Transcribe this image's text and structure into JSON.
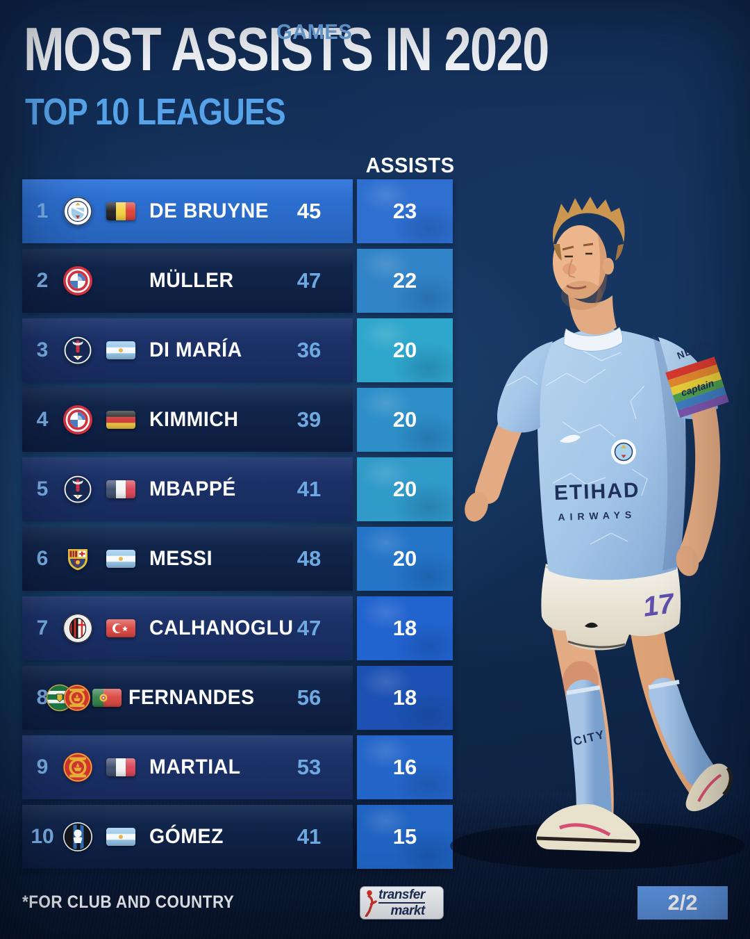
{
  "header": {
    "title": "MOST ASSISTS IN 2020",
    "subtitle": "TOP 10 LEAGUES"
  },
  "columns": {
    "games": "GAMES",
    "assists": "ASSISTS"
  },
  "colors": {
    "accent_light_blue": "#56a3e9",
    "rank_number": "#79aee4",
    "games_number": "#6fa9e2",
    "badge_bg": "#5b92dd",
    "tones": {
      "bright": {
        "top": "#2f75da",
        "bottom": "#2763bb"
      },
      "odd": {
        "top": "#1e366f",
        "bottom": "#172a5c"
      },
      "even": {
        "top": "#132950",
        "bottom": "#0d1c3e"
      }
    }
  },
  "table": {
    "rows": [
      {
        "rank": "1",
        "player": "DE BRUYNE",
        "club_icons": [
          "manchester-city"
        ],
        "flag_icon": "belgium",
        "games": "45",
        "assists": "23",
        "tone": "bright",
        "cell_color": "#2e6fd0",
        "games_white": true
      },
      {
        "rank": "2",
        "player": "MÜLLER",
        "club_icons": [
          "bayern-munich"
        ],
        "flag_icon": null,
        "games": "47",
        "assists": "22",
        "tone": "even",
        "cell_color": "#3184c7",
        "games_white": false
      },
      {
        "rank": "3",
        "player": "DI MARÍA",
        "club_icons": [
          "psg"
        ],
        "flag_icon": "argentina",
        "games": "36",
        "assists": "20",
        "tone": "odd",
        "cell_color": "#2fa6cb",
        "games_white": false
      },
      {
        "rank": "4",
        "player": "KIMMICH",
        "club_icons": [
          "bayern-munich"
        ],
        "flag_icon": "germany",
        "games": "39",
        "assists": "20",
        "tone": "even",
        "cell_color": "#2e8fc8",
        "games_white": false
      },
      {
        "rank": "5",
        "player": "MBAPPÉ",
        "club_icons": [
          "psg"
        ],
        "flag_icon": "france",
        "games": "41",
        "assists": "20",
        "tone": "odd",
        "cell_color": "#309ac9",
        "games_white": false
      },
      {
        "rank": "6",
        "player": "MESSI",
        "club_icons": [
          "barcelona"
        ],
        "flag_icon": "argentina",
        "games": "48",
        "assists": "20",
        "tone": "even",
        "cell_color": "#2474c8",
        "games_white": false
      },
      {
        "rank": "7",
        "player": "CALHANOGLU",
        "club_icons": [
          "ac-milan"
        ],
        "flag_icon": "turkey",
        "games": "47",
        "assists": "18",
        "tone": "odd",
        "cell_color": "#2163cf",
        "games_white": false
      },
      {
        "rank": "8",
        "player": "FERNANDES",
        "club_icons": [
          "sporting-cp",
          "manchester-united"
        ],
        "flag_icon": "portugal",
        "games": "56",
        "assists": "18",
        "tone": "even",
        "cell_color": "#1c51b3",
        "games_white": false
      },
      {
        "rank": "9",
        "player": "MARTIAL",
        "club_icons": [
          "manchester-united"
        ],
        "flag_icon": "france",
        "games": "53",
        "assists": "16",
        "tone": "odd",
        "cell_color": "#2465c9",
        "games_white": false
      },
      {
        "rank": "10",
        "player": "GÓMEZ",
        "club_icons": [
          "atalanta"
        ],
        "flag_icon": "argentina",
        "games": "41",
        "assists": "15",
        "tone": "even",
        "cell_color": "#2063c2",
        "games_white": false
      }
    ]
  },
  "chart_data": {
    "type": "table",
    "title": "MOST ASSISTS IN 2020",
    "subtitle": "TOP 10 LEAGUES",
    "footnote": "*FOR CLUB AND COUNTRY",
    "columns": [
      "rank",
      "player",
      "clubs",
      "nation",
      "games",
      "assists"
    ],
    "rows": [
      [
        1,
        "DE BRUYNE",
        [
          "Manchester City"
        ],
        "Belgium",
        45,
        23
      ],
      [
        2,
        "MÜLLER",
        [
          "Bayern Munich"
        ],
        null,
        47,
        22
      ],
      [
        3,
        "DI MARÍA",
        [
          "Paris Saint-Germain"
        ],
        "Argentina",
        36,
        20
      ],
      [
        4,
        "KIMMICH",
        [
          "Bayern Munich"
        ],
        "Germany",
        39,
        20
      ],
      [
        5,
        "MBAPPÉ",
        [
          "Paris Saint-Germain"
        ],
        "France",
        41,
        20
      ],
      [
        6,
        "MESSI",
        [
          "FC Barcelona"
        ],
        "Argentina",
        48,
        20
      ],
      [
        7,
        "CALHANOGLU",
        [
          "AC Milan"
        ],
        "Turkey",
        47,
        18
      ],
      [
        8,
        "FERNANDES",
        [
          "Sporting CP",
          "Manchester United"
        ],
        "Portugal",
        56,
        18
      ],
      [
        9,
        "MARTIAL",
        [
          "Manchester United"
        ],
        "France",
        53,
        16
      ],
      [
        10,
        "GÓMEZ",
        [
          "Atalanta"
        ],
        "Argentina",
        41,
        15
      ]
    ]
  },
  "player": {
    "alt": "Kevin De Bruyne in Manchester City home kit",
    "jersey_sponsor_line1": "ETIHAD",
    "jersey_sponsor_line2": "AIRWAYS",
    "sleeve_sponsor": "NEXEN",
    "armband_text": "captain",
    "shorts_number": "17",
    "sock_text": "CITY"
  },
  "footer": {
    "note": "*FOR CLUB AND COUNTRY",
    "brand_line1": "transfer",
    "brand_line2": "markt",
    "page_indicator": "2/2"
  }
}
